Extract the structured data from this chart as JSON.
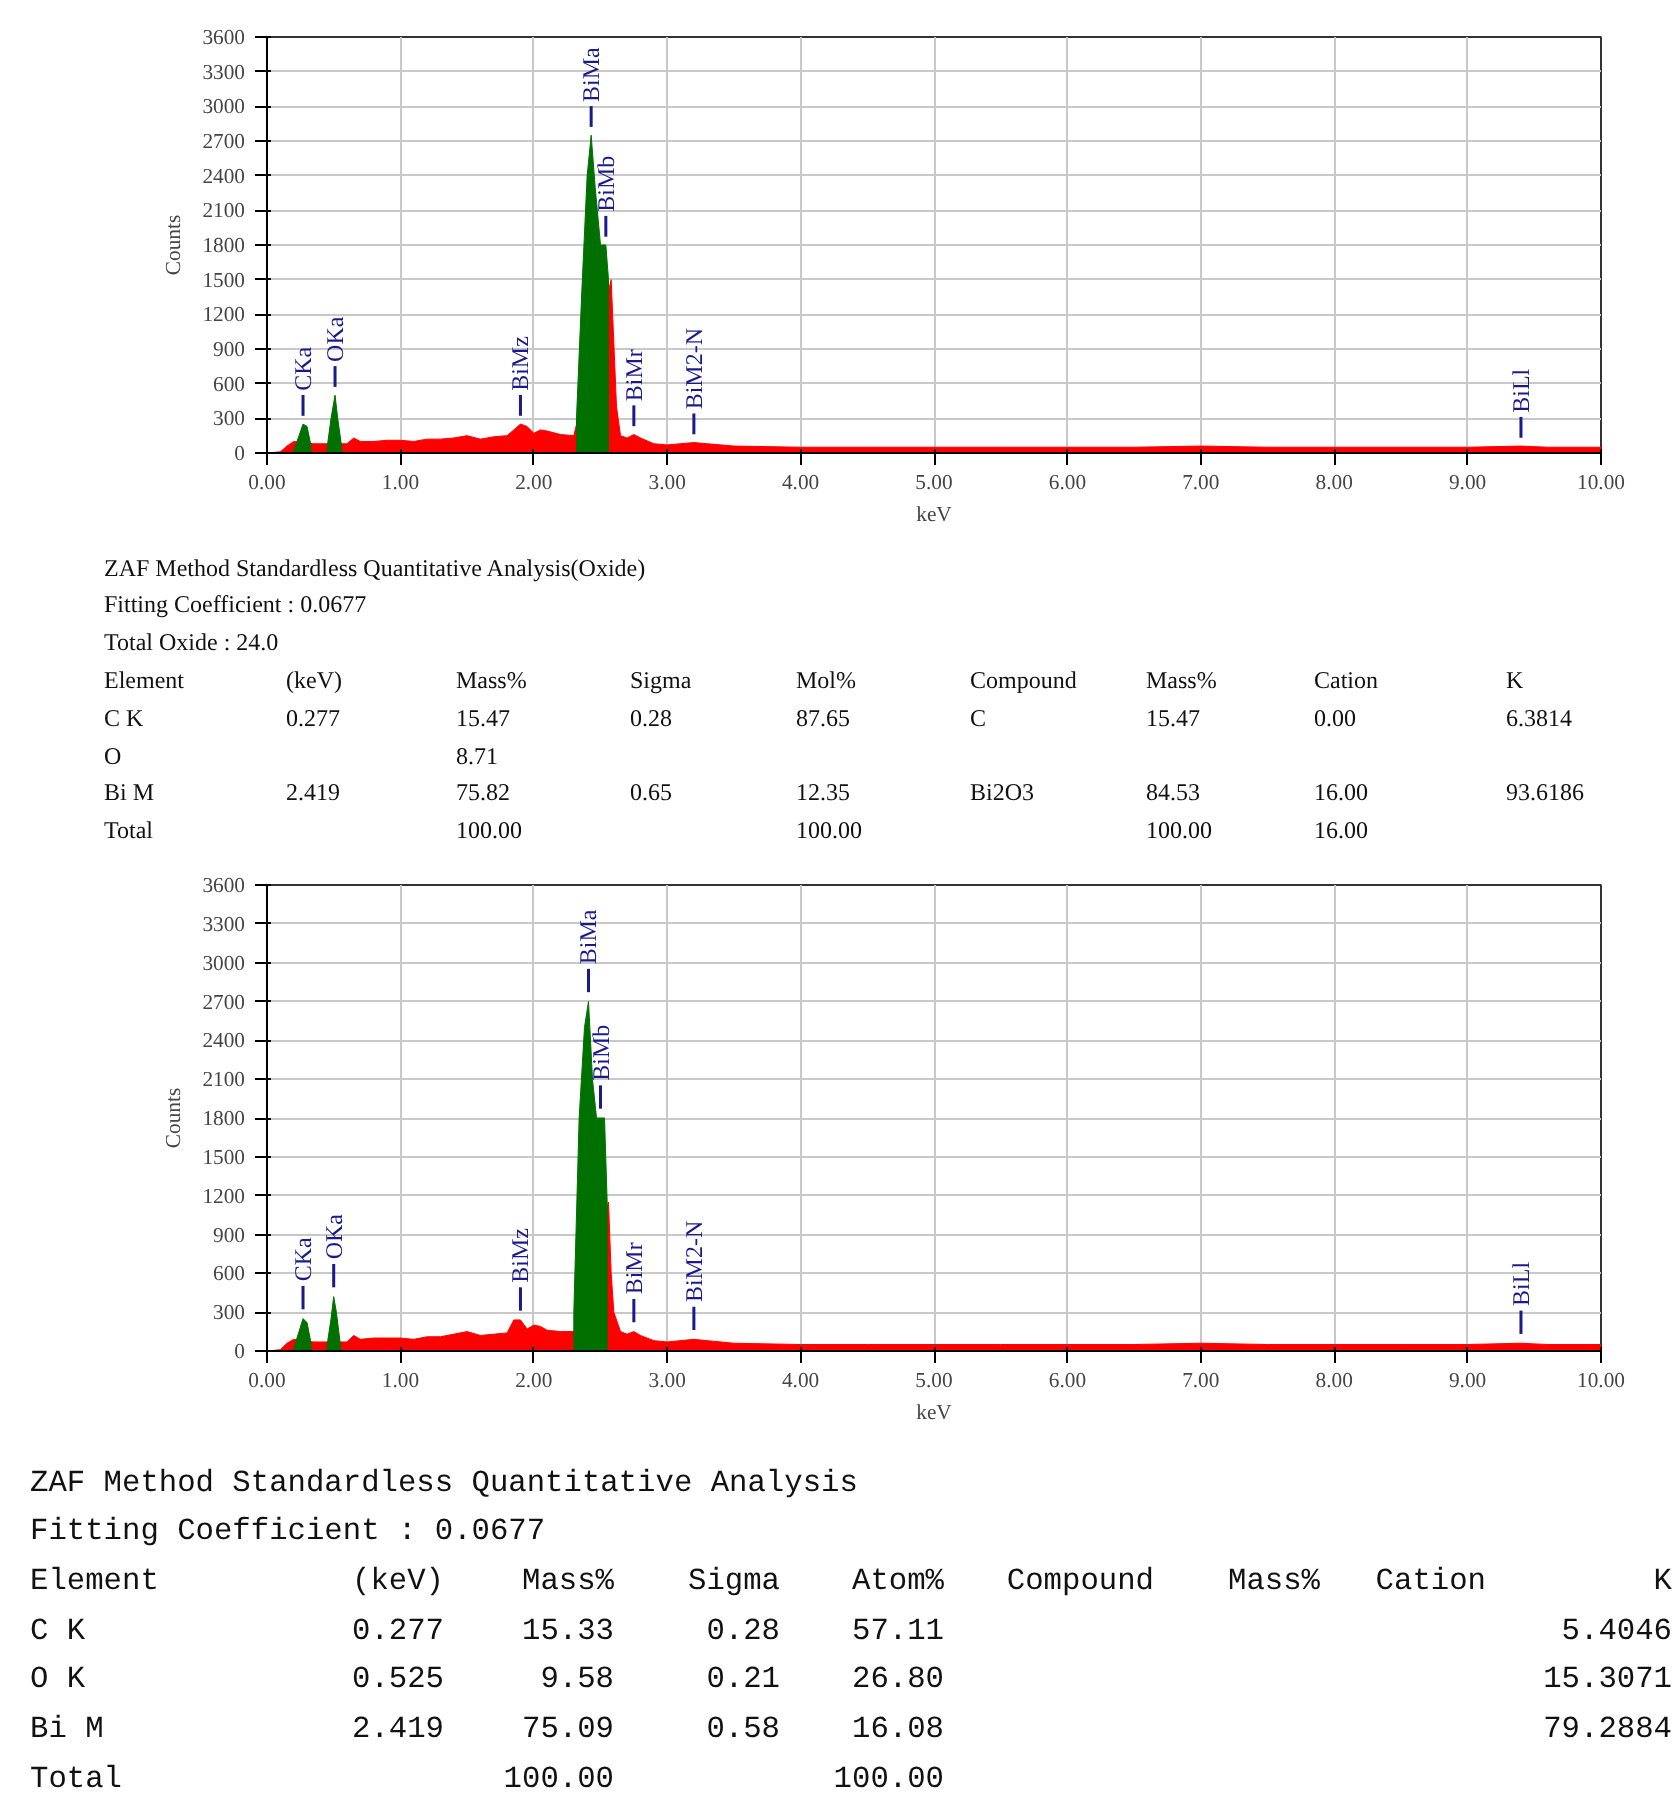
{
  "chart_data": [
    {
      "type": "area",
      "xlabel": "keV",
      "ylabel": "Counts",
      "xlim": [
        0,
        10
      ],
      "ylim": [
        0,
        3600
      ],
      "xticks": [
        {
          "value": 0,
          "label": "0.00"
        },
        {
          "value": 1,
          "label": "1.00"
        },
        {
          "value": 2,
          "label": "2.00"
        },
        {
          "value": 3,
          "label": "3.00"
        },
        {
          "value": 4,
          "label": "4.00"
        },
        {
          "value": 5,
          "label": "5.00"
        },
        {
          "value": 6,
          "label": "6.00"
        },
        {
          "value": 7,
          "label": "7.00"
        },
        {
          "value": 8,
          "label": "8.00"
        },
        {
          "value": 9,
          "label": "9.00"
        },
        {
          "value": 10,
          "label": "10.00"
        }
      ],
      "yticks": [
        0,
        300,
        600,
        900,
        1200,
        1500,
        1800,
        2100,
        2400,
        2700,
        3000,
        3300,
        3600
      ],
      "grid": true,
      "series": [
        {
          "color": "#ff0000",
          "x": [
            0,
            0.1,
            0.15,
            0.2,
            0.35,
            0.4,
            0.6,
            0.65,
            0.7,
            0.8,
            0.9,
            1.0,
            1.1,
            1.2,
            1.3,
            1.4,
            1.5,
            1.6,
            1.7,
            1.8,
            1.9,
            1.95,
            2.0,
            2.05,
            2.1,
            2.2,
            2.3,
            2.58,
            2.6,
            2.62,
            2.65,
            2.7,
            2.75,
            2.8,
            2.9,
            3.0,
            3.2,
            3.3,
            3.5,
            4.0,
            4.5,
            5.0,
            5.5,
            6.0,
            6.5,
            7.0,
            7.5,
            8.0,
            8.5,
            9.0,
            9.4,
            9.6,
            10.0
          ],
          "values": [
            0,
            10,
            60,
            100,
            80,
            80,
            80,
            130,
            100,
            100,
            110,
            110,
            100,
            120,
            120,
            130,
            150,
            120,
            140,
            150,
            250,
            230,
            170,
            200,
            190,
            160,
            150,
            1500,
            950,
            400,
            150,
            130,
            160,
            130,
            80,
            70,
            90,
            80,
            60,
            50,
            50,
            50,
            50,
            50,
            50,
            60,
            50,
            50,
            50,
            50,
            60,
            50,
            50
          ]
        },
        {
          "color": "#007000",
          "x": [
            0.2,
            0.24,
            0.27,
            0.3,
            0.33,
            0.34,
            0.45,
            0.48,
            0.51,
            0.53,
            0.56,
            0.57,
            2.32,
            2.36,
            2.4,
            2.43,
            2.46,
            2.5,
            2.54,
            2.56
          ],
          "values": [
            20,
            150,
            250,
            230,
            60,
            null,
            40,
            300,
            500,
            300,
            50,
            null,
            300,
            1400,
            2400,
            2750,
            2300,
            1800,
            1800,
            1500
          ]
        }
      ],
      "annotations": [
        {
          "text": "CKa",
          "x": 0.27,
          "y": 250
        },
        {
          "text": "OKa",
          "x": 0.51,
          "y": 500
        },
        {
          "text": "BiMz",
          "x": 1.9,
          "y": 250
        },
        {
          "text": "BiMa",
          "x": 2.43,
          "y": 2750
        },
        {
          "text": "BiMb",
          "x": 2.54,
          "y": 1800
        },
        {
          "text": "BiMr",
          "x": 2.75,
          "y": 160
        },
        {
          "text": "BiM2-N",
          "x": 3.2,
          "y": 90
        },
        {
          "text": "BiLl",
          "x": 9.4,
          "y": 60
        }
      ]
    },
    {
      "type": "other",
      "annotations": [
        "ZAF Method Standardless Quantitative Analysis(Oxide)",
        "Fitting Coefficient : 0.0677",
        "Total Oxide : 24.0",
        "Element\t(keV)\tMass%\tSigma\tMol%\tCompound\tMass%\tCation\tK",
        "C K\t0.277\t15.47\t0.28\t87.65\tC\t15.47\t0.00\t6.3814",
        "O\t\t8.71",
        "Bi M\t2.419\t75.82\t0.65\t12.35\tBi2O3\t84.53\t16.00\t93.6186",
        "Total\t\t100.00\t\t100.00\t\t100.00\t16.00"
      ]
    },
    {
      "type": "area",
      "xlabel": "keV",
      "ylabel": "Counts",
      "xlim": [
        0,
        10
      ],
      "ylim": [
        0,
        3600
      ],
      "xticks": [
        {
          "value": 0,
          "label": "0.00"
        },
        {
          "value": 1,
          "label": "1.00"
        },
        {
          "value": 2,
          "label": "2.00"
        },
        {
          "value": 3,
          "label": "3.00"
        },
        {
          "value": 4,
          "label": "4.00"
        },
        {
          "value": 5,
          "label": "5.00"
        },
        {
          "value": 6,
          "label": "6.00"
        },
        {
          "value": 7,
          "label": "7.00"
        },
        {
          "value": 8,
          "label": "8.00"
        },
        {
          "value": 9,
          "label": "9.00"
        },
        {
          "value": 10,
          "label": "10.00"
        }
      ],
      "yticks": [
        0,
        300,
        600,
        900,
        1200,
        1500,
        1800,
        2100,
        2400,
        2700,
        3000,
        3300,
        3600
      ],
      "grid": true,
      "series": [
        {
          "color": "#ff0000",
          "x": [
            0,
            0.1,
            0.15,
            0.2,
            0.35,
            0.4,
            0.6,
            0.65,
            0.7,
            0.8,
            0.9,
            1.0,
            1.1,
            1.2,
            1.3,
            1.4,
            1.5,
            1.6,
            1.7,
            1.8,
            1.85,
            1.9,
            1.95,
            2.0,
            2.05,
            2.1,
            2.2,
            2.3,
            2.56,
            2.58,
            2.6,
            2.65,
            2.7,
            2.75,
            2.8,
            2.9,
            3.0,
            3.2,
            3.3,
            3.5,
            4.0,
            4.5,
            5.0,
            5.5,
            6.0,
            6.5,
            7.0,
            7.5,
            8.0,
            8.5,
            9.0,
            9.4,
            9.6,
            10.0
          ],
          "values": [
            0,
            10,
            60,
            90,
            70,
            70,
            70,
            120,
            90,
            100,
            100,
            100,
            90,
            110,
            110,
            130,
            150,
            120,
            130,
            140,
            240,
            240,
            170,
            200,
            190,
            160,
            150,
            150,
            1150,
            600,
            300,
            150,
            130,
            150,
            120,
            80,
            70,
            90,
            80,
            60,
            50,
            50,
            50,
            50,
            50,
            50,
            60,
            50,
            50,
            50,
            50,
            60,
            50,
            50
          ]
        },
        {
          "color": "#007000",
          "x": [
            0.2,
            0.24,
            0.27,
            0.3,
            0.33,
            0.34,
            0.45,
            0.48,
            0.5,
            0.52,
            0.55,
            0.56,
            2.3,
            2.34,
            2.38,
            2.41,
            2.44,
            2.47,
            2.5,
            2.53,
            2.55
          ],
          "values": [
            20,
            150,
            250,
            220,
            60,
            null,
            40,
            250,
            420,
            300,
            50,
            null,
            300,
            1800,
            2500,
            2700,
            2100,
            1800,
            1800,
            1800,
            1150
          ]
        }
      ],
      "annotations": [
        {
          "text": "CKa",
          "x": 0.27,
          "y": 250
        },
        {
          "text": "OKa",
          "x": 0.5,
          "y": 420
        },
        {
          "text": "BiMz",
          "x": 1.9,
          "y": 240
        },
        {
          "text": "BiMa",
          "x": 2.41,
          "y": 2700
        },
        {
          "text": "BiMb",
          "x": 2.5,
          "y": 1800
        },
        {
          "text": "BiMr",
          "x": 2.75,
          "y": 150
        },
        {
          "text": "BiM2-N",
          "x": 3.2,
          "y": 90
        },
        {
          "text": "BiLl",
          "x": 9.4,
          "y": 60
        }
      ]
    },
    {
      "type": "other",
      "annotations": [
        "ZAF Method Standardless Quantitative Analysis",
        "Fitting Coefficient : 0.0677",
        "Element\t(keV)\tMass%\tSigma\tAtom%\tCompound\tMass%\tCation\tK",
        "C K\t0.277\t15.33\t0.28\t57.11\t\t\t\t5.4046",
        "O K\t0.525\t9.58\t0.21\t26.80\t\t\t\t15.3071",
        "Bi M\t2.419\t75.09\t0.58\t16.08\t\t\t\t79.2884",
        "Total\t\t100.00\t\t100.00"
      ]
    }
  ]
}
